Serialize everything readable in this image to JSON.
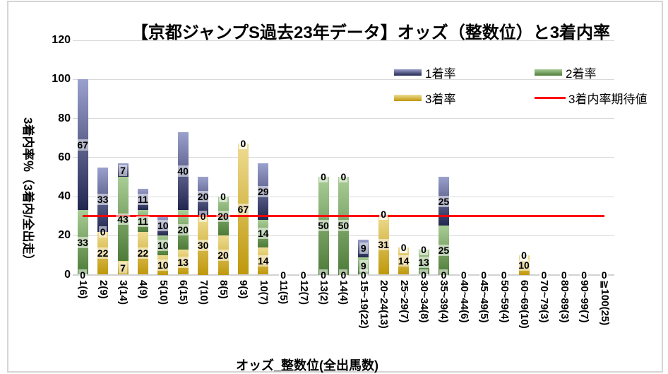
{
  "title": "【京都ジャンプS過去23年データ】オッズ（整数位）と3着内率",
  "legend": {
    "win": "1着率",
    "second": "2着率",
    "third": "3着率",
    "expected": "3着内率期待値"
  },
  "colors": {
    "win_top": "#9ba1cd",
    "win_bottom": "#222750",
    "second_top": "#a9cd96",
    "second_bottom": "#4d7b38",
    "third_top": "#eedc92",
    "third_bottom": "#bf980b",
    "expected_line": "#fe0000",
    "gridline": "#d9d9d9"
  },
  "chart_data": {
    "type": "bar",
    "stacked": true,
    "title": "【京都ジャンプS過去23年データ】オッズ（整数位）と3着内率",
    "xlabel": "オッズ_整数位(全出馬数)",
    "ylabel": "3着内率％（3着内/全出走）",
    "ylim": [
      0,
      120
    ],
    "yticks": [
      0,
      20,
      40,
      60,
      80,
      100,
      120
    ],
    "grid": true,
    "legend_position": "top-right-two-rows",
    "categories": [
      "1(6)",
      "2(9)",
      "3(14)",
      "4(9)",
      "5(10)",
      "6(15)",
      "7(10)",
      "8(5)",
      "9(3)",
      "10(7)",
      "11(5)",
      "12(7)",
      "13(2)",
      "14(4)",
      "15~19(22)",
      "20~24(13)",
      "25~29(7)",
      "30~34(8)",
      "35~39(4)",
      "40~44(6)",
      "45~49(5)",
      "50~59(4)",
      "60~69(10)",
      "70~79(3)",
      "80~89(3)",
      "90~99(7)",
      "≧100(25)"
    ],
    "stack_order_bottom_to_top": [
      "3着率",
      "2着率",
      "1着率"
    ],
    "series": [
      {
        "name": "1着率",
        "values": [
          67,
          33,
          7,
          11,
          10,
          40,
          20,
          0,
          0,
          29,
          0,
          0,
          0,
          0,
          9,
          0,
          0,
          0,
          25,
          0,
          0,
          0,
          0,
          0,
          0,
          0,
          0
        ]
      },
      {
        "name": "2着率",
        "values": [
          33,
          0,
          43,
          11,
          10,
          20,
          0,
          20,
          0,
          14,
          0,
          0,
          50,
          50,
          9,
          0,
          0,
          13,
          25,
          0,
          0,
          0,
          0,
          0,
          0,
          0,
          0
        ]
      },
      {
        "name": "3着率",
        "values": [
          0,
          22,
          7,
          22,
          10,
          13,
          30,
          20,
          67,
          14,
          0,
          0,
          0,
          0,
          0,
          31,
          14,
          0,
          0,
          0,
          0,
          0,
          10,
          0,
          0,
          0,
          0
        ]
      }
    ],
    "line": {
      "name": "3着内率期待値",
      "value": 30
    }
  }
}
